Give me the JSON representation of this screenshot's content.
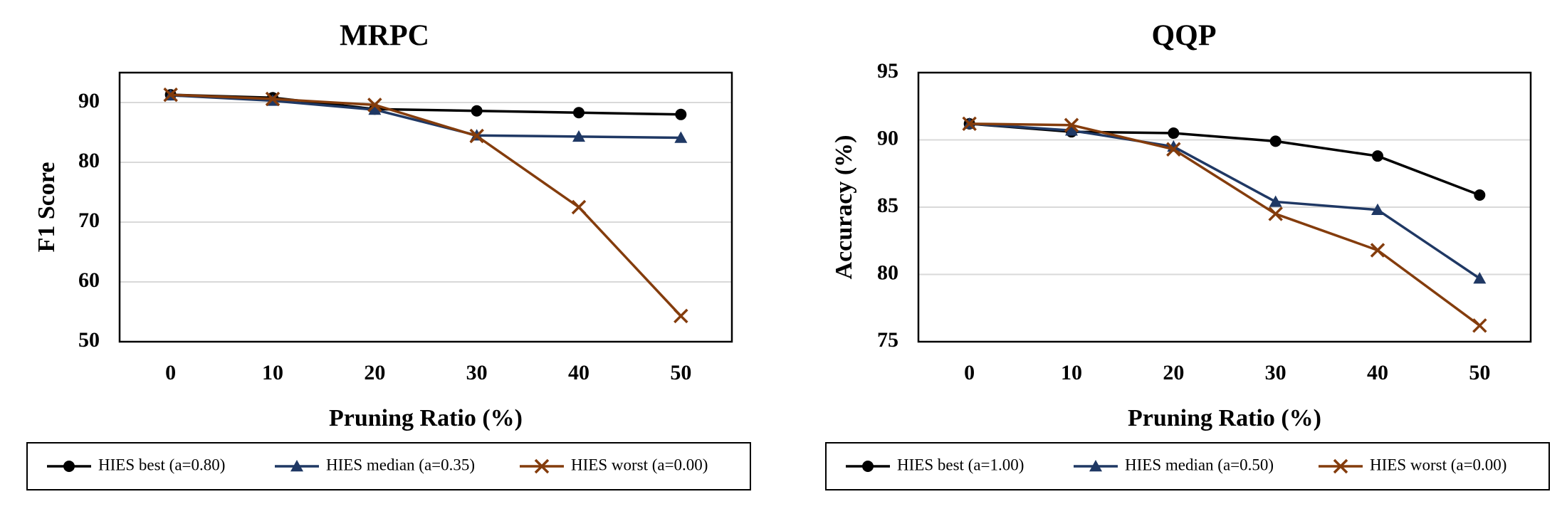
{
  "chart_data": [
    {
      "type": "line",
      "title": "MRPC",
      "xlabel": "Pruning Ratio (%)",
      "ylabel": "F1 Score",
      "categories": [
        "0",
        "10",
        "20",
        "30",
        "40",
        "50"
      ],
      "ylim": [
        50,
        95
      ],
      "yticks": [
        50,
        60,
        70,
        80,
        90
      ],
      "grid": true,
      "legend_position": "bottom",
      "series": [
        {
          "name": "HIES best (a=0.80)",
          "color": "#000000",
          "marker": "circle",
          "values": [
            91.3,
            90.8,
            88.9,
            88.6,
            88.3,
            88.0
          ]
        },
        {
          "name": "HIES median (a=0.35)",
          "color": "#1f3864",
          "marker": "triangle",
          "values": [
            91.2,
            90.3,
            88.8,
            84.5,
            84.3,
            84.1
          ]
        },
        {
          "name": "HIES worst (a=0.00)",
          "color": "#843c0c",
          "marker": "x",
          "values": [
            91.3,
            90.6,
            89.6,
            84.4,
            72.5,
            54.3
          ]
        }
      ]
    },
    {
      "type": "line",
      "title": "QQP",
      "xlabel": "Pruning Ratio (%)",
      "ylabel": "Accuracy (%)",
      "categories": [
        "0",
        "10",
        "20",
        "30",
        "40",
        "50"
      ],
      "ylim": [
        75,
        95
      ],
      "yticks": [
        75,
        80,
        85,
        90,
        95
      ],
      "grid": true,
      "legend_position": "bottom",
      "series": [
        {
          "name": "HIES best (a=1.00)",
          "color": "#000000",
          "marker": "circle",
          "values": [
            91.2,
            90.6,
            90.5,
            89.9,
            88.8,
            85.9
          ]
        },
        {
          "name": "HIES median (a=0.50)",
          "color": "#1f3864",
          "marker": "triangle",
          "values": [
            91.2,
            90.7,
            89.5,
            85.4,
            84.8,
            79.7
          ]
        },
        {
          "name": "HIES worst (a=0.00)",
          "color": "#843c0c",
          "marker": "x",
          "values": [
            91.2,
            91.1,
            89.3,
            84.5,
            81.8,
            76.2
          ]
        }
      ]
    }
  ]
}
